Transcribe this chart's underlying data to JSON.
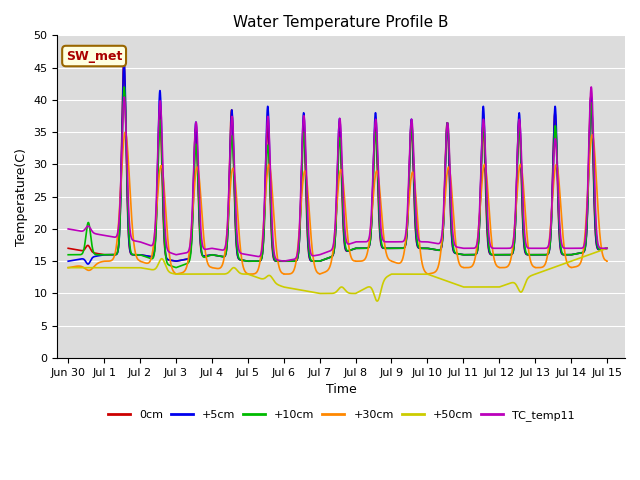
{
  "title": "Water Temperature Profile B",
  "xlabel": "Time",
  "ylabel": "Temperature(C)",
  "annotation": "SW_met",
  "ylim": [
    0,
    50
  ],
  "series_colors": {
    "0cm": "#cc0000",
    "+5cm": "#0000ee",
    "+10cm": "#00bb00",
    "+30cm": "#ff8800",
    "+50cm": "#cccc00",
    "TC_temp11": "#bb00bb"
  },
  "series_order": [
    "0cm",
    "+5cm",
    "+10cm",
    "+30cm",
    "+50cm",
    "TC_temp11"
  ],
  "bg_color": "#dcdcdc",
  "tick_dates": [
    "Jun 30",
    "Jul 1",
    "Jul 2",
    "Jul 3",
    "Jul 4",
    "Jul 5",
    "Jul 6",
    "Jul 7",
    "Jul 8",
    "Jul 9",
    "Jul 10",
    "Jul 11",
    "Jul 12",
    "Jul 13",
    "Jul 14",
    "Jul 15"
  ],
  "tick_positions": [
    0,
    1,
    2,
    3,
    4,
    5,
    6,
    7,
    8,
    9,
    10,
    11,
    12,
    13,
    14,
    15
  ],
  "peaks": {
    "0cm": [
      18,
      46,
      39,
      36,
      39,
      36,
      36,
      36,
      36,
      36,
      37,
      36,
      37,
      38,
      41,
      42
    ],
    "+5cm": [
      15,
      46,
      42,
      37,
      39,
      39,
      38,
      38,
      38,
      37,
      37,
      39,
      38,
      39,
      41,
      42
    ],
    "+10cm": [
      21,
      42,
      38,
      34,
      35,
      33,
      35,
      35,
      35,
      36,
      37,
      36,
      36,
      36,
      40,
      41
    ],
    "+30cm": [
      14,
      35,
      31,
      30,
      30,
      30,
      29,
      30,
      29,
      30,
      30,
      30,
      30,
      30,
      35,
      35
    ],
    "+50cm": [
      14,
      14,
      16,
      13,
      14,
      14,
      11,
      11,
      10,
      13,
      13,
      11,
      11,
      15,
      17,
      17
    ],
    "TC_temp11": [
      21,
      41,
      41,
      37,
      38,
      38,
      38,
      38,
      37,
      37,
      37,
      37,
      37,
      34,
      42,
      42
    ]
  },
  "troughs": {
    "0cm": [
      17,
      16,
      16,
      15,
      16,
      15,
      15,
      15,
      17,
      17,
      17,
      16,
      16,
      16,
      16,
      17
    ],
    "+5cm": [
      15,
      16,
      16,
      15,
      16,
      15,
      15,
      15,
      17,
      17,
      17,
      16,
      16,
      16,
      16,
      17
    ],
    "+10cm": [
      16,
      16,
      16,
      14,
      16,
      15,
      15,
      15,
      17,
      17,
      17,
      16,
      16,
      16,
      16,
      17
    ],
    "+30cm": [
      14,
      15,
      15,
      13,
      14,
      13,
      13,
      13,
      15,
      15,
      13,
      14,
      14,
      14,
      14,
      15
    ],
    "+50cm": [
      14,
      14,
      14,
      13,
      13,
      13,
      11,
      10,
      10,
      13,
      13,
      11,
      11,
      13,
      15,
      17
    ],
    "TC_temp11": [
      20,
      19,
      18,
      16,
      17,
      16,
      15,
      16,
      18,
      18,
      18,
      17,
      17,
      17,
      17,
      17
    ]
  },
  "peak_offsets": {
    "0cm": 0.0,
    "+5cm": 0.005,
    "+10cm": 0.01,
    "+30cm": 0.04,
    "+50cm": 0.06,
    "TC_temp11": 0.01
  },
  "peak_widths": {
    "0cm": 0.06,
    "+5cm": 0.06,
    "+10cm": 0.065,
    "+30cm": 0.12,
    "+50cm": 0.09,
    "TC_temp11": 0.07
  }
}
